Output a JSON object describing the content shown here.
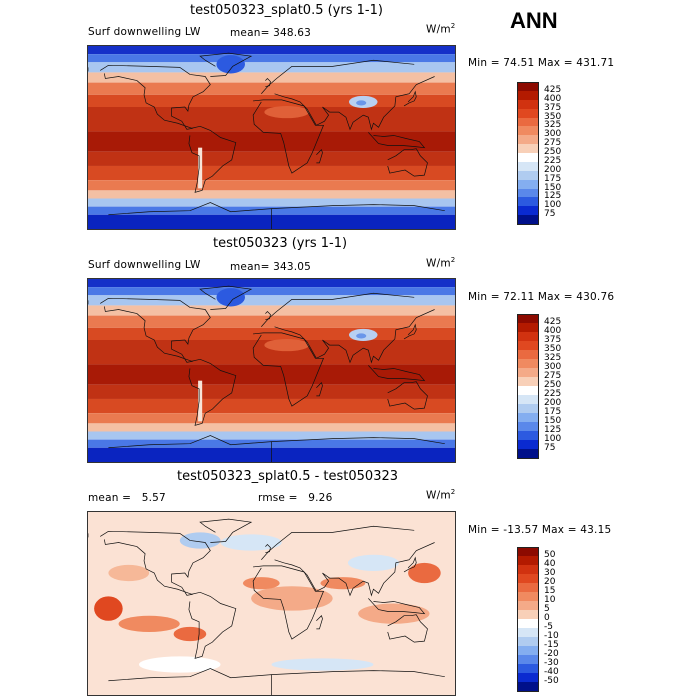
{
  "season": "ANN",
  "panels": [
    {
      "title": "test050323_splat0.5 (yrs 1-1)",
      "left_label": "Surf downwelling LW",
      "stat1_label": "mean=",
      "stat1_value": "348.63",
      "stat2_label": "",
      "stat2_value": "",
      "units": "W/m",
      "units_sup": "2",
      "min_max": "Min =  74.51 Max = 431.71",
      "kind": "abs"
    },
    {
      "title": "test050323 (yrs 1-1)",
      "left_label": "Surf downwelling LW",
      "stat1_label": "mean=",
      "stat1_value": "343.05",
      "stat2_label": "",
      "stat2_value": "",
      "units": "W/m",
      "units_sup": "2",
      "min_max": "Min =  72.11 Max = 430.76",
      "kind": "abs"
    },
    {
      "title": "test050323_splat0.5 - test050323",
      "left_label": "",
      "stat1_label": "mean =",
      "stat1_value": "5.57",
      "stat2_label": "rmse =",
      "stat2_value": "9.26",
      "units": "W/m",
      "units_sup": "2",
      "min_max": "Min = -13.57 Max =  43.15",
      "kind": "diff"
    }
  ],
  "colorbars": {
    "abs": {
      "levels": [
        "425",
        "400",
        "375",
        "350",
        "325",
        "300",
        "275",
        "250",
        "225",
        "200",
        "175",
        "150",
        "125",
        "100",
        "75"
      ],
      "colors": [
        "#8c0a00",
        "#b31a00",
        "#d13210",
        "#e04820",
        "#ea6a40",
        "#f08a60",
        "#f4aa88",
        "#f8d0b8",
        "#ffffff",
        "#d6e6f6",
        "#b0ccf0",
        "#84aef0",
        "#5a88ea",
        "#2c5ae0",
        "#0a2ad0",
        "#00108a"
      ]
    },
    "diff": {
      "levels": [
        "50",
        "40",
        "30",
        "20",
        "15",
        "10",
        "5",
        "0",
        "-5",
        "-10",
        "-15",
        "-20",
        "-30",
        "-40",
        "-50"
      ],
      "colors": [
        "#8c0a00",
        "#b31a00",
        "#d13210",
        "#e04820",
        "#ea6a40",
        "#f08a60",
        "#f4aa88",
        "#f8d0b8",
        "#ffffff",
        "#d6e6f6",
        "#b0ccf0",
        "#84aef0",
        "#5a88ea",
        "#2c5ae0",
        "#0a2ad0",
        "#00108a"
      ]
    }
  },
  "chart_data": [
    {
      "type": "heatmap",
      "title": "test050323_splat0.5 (yrs 1-1)",
      "variable": "Surf downwelling LW",
      "units": "W/m2",
      "mean": 348.63,
      "min": 74.51,
      "max": 431.71,
      "contour_levels": [
        75,
        100,
        125,
        150,
        175,
        200,
        225,
        250,
        275,
        300,
        325,
        350,
        375,
        400,
        425
      ]
    },
    {
      "type": "heatmap",
      "title": "test050323 (yrs 1-1)",
      "variable": "Surf downwelling LW",
      "units": "W/m2",
      "mean": 343.05,
      "min": 72.11,
      "max": 430.76,
      "contour_levels": [
        75,
        100,
        125,
        150,
        175,
        200,
        225,
        250,
        275,
        300,
        325,
        350,
        375,
        400,
        425
      ]
    },
    {
      "type": "heatmap",
      "title": "test050323_splat0.5 - test050323",
      "units": "W/m2",
      "mean": 5.57,
      "rmse": 9.26,
      "min": -13.57,
      "max": 43.15,
      "contour_levels": [
        -50,
        -40,
        -30,
        -20,
        -15,
        -10,
        -5,
        0,
        5,
        10,
        15,
        20,
        30,
        40,
        50
      ]
    }
  ]
}
